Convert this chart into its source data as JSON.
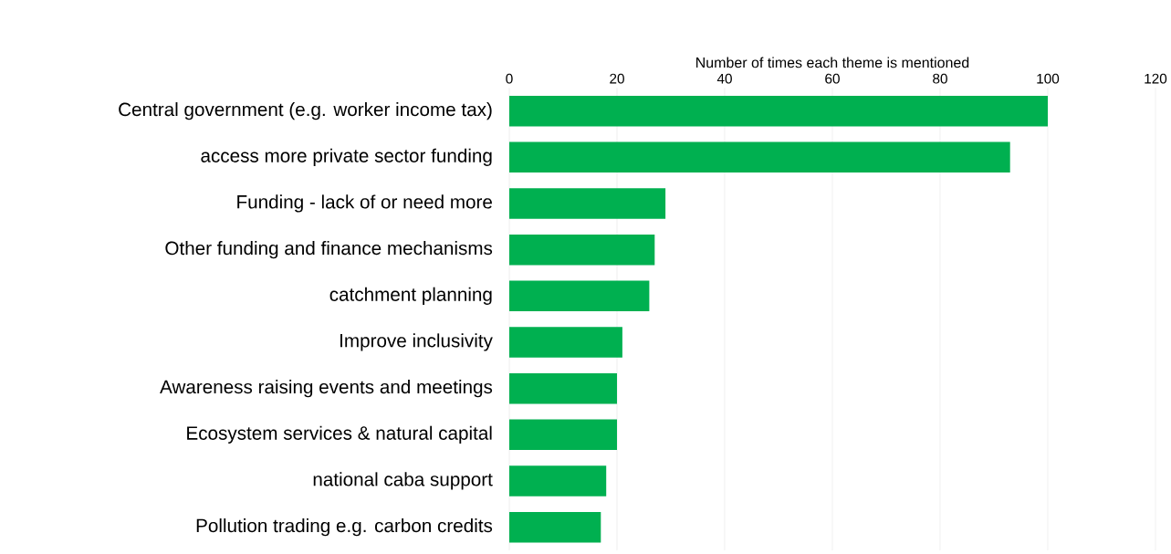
{
  "chart_data": {
    "type": "bar",
    "orientation": "horizontal",
    "xlabel": "Number of times each theme is mentioned",
    "categories": [
      "Central government (e.g. worker income tax)",
      "access more private sector funding",
      "Funding - lack of or need more",
      "Other funding and finance mechanisms",
      "catchment planning",
      "Improve inclusivity",
      "Awareness raising events and meetings",
      "Ecosystem services & natural capital",
      "national caba support",
      "Pollution trading e.g. carbon credits"
    ],
    "values": [
      100,
      93,
      29,
      27,
      26,
      21,
      20,
      20,
      18,
      17
    ],
    "color": "#00b050",
    "xlim": [
      0,
      120
    ],
    "xticks": [
      0,
      20,
      40,
      60,
      80,
      100,
      120
    ],
    "grid": "x"
  }
}
